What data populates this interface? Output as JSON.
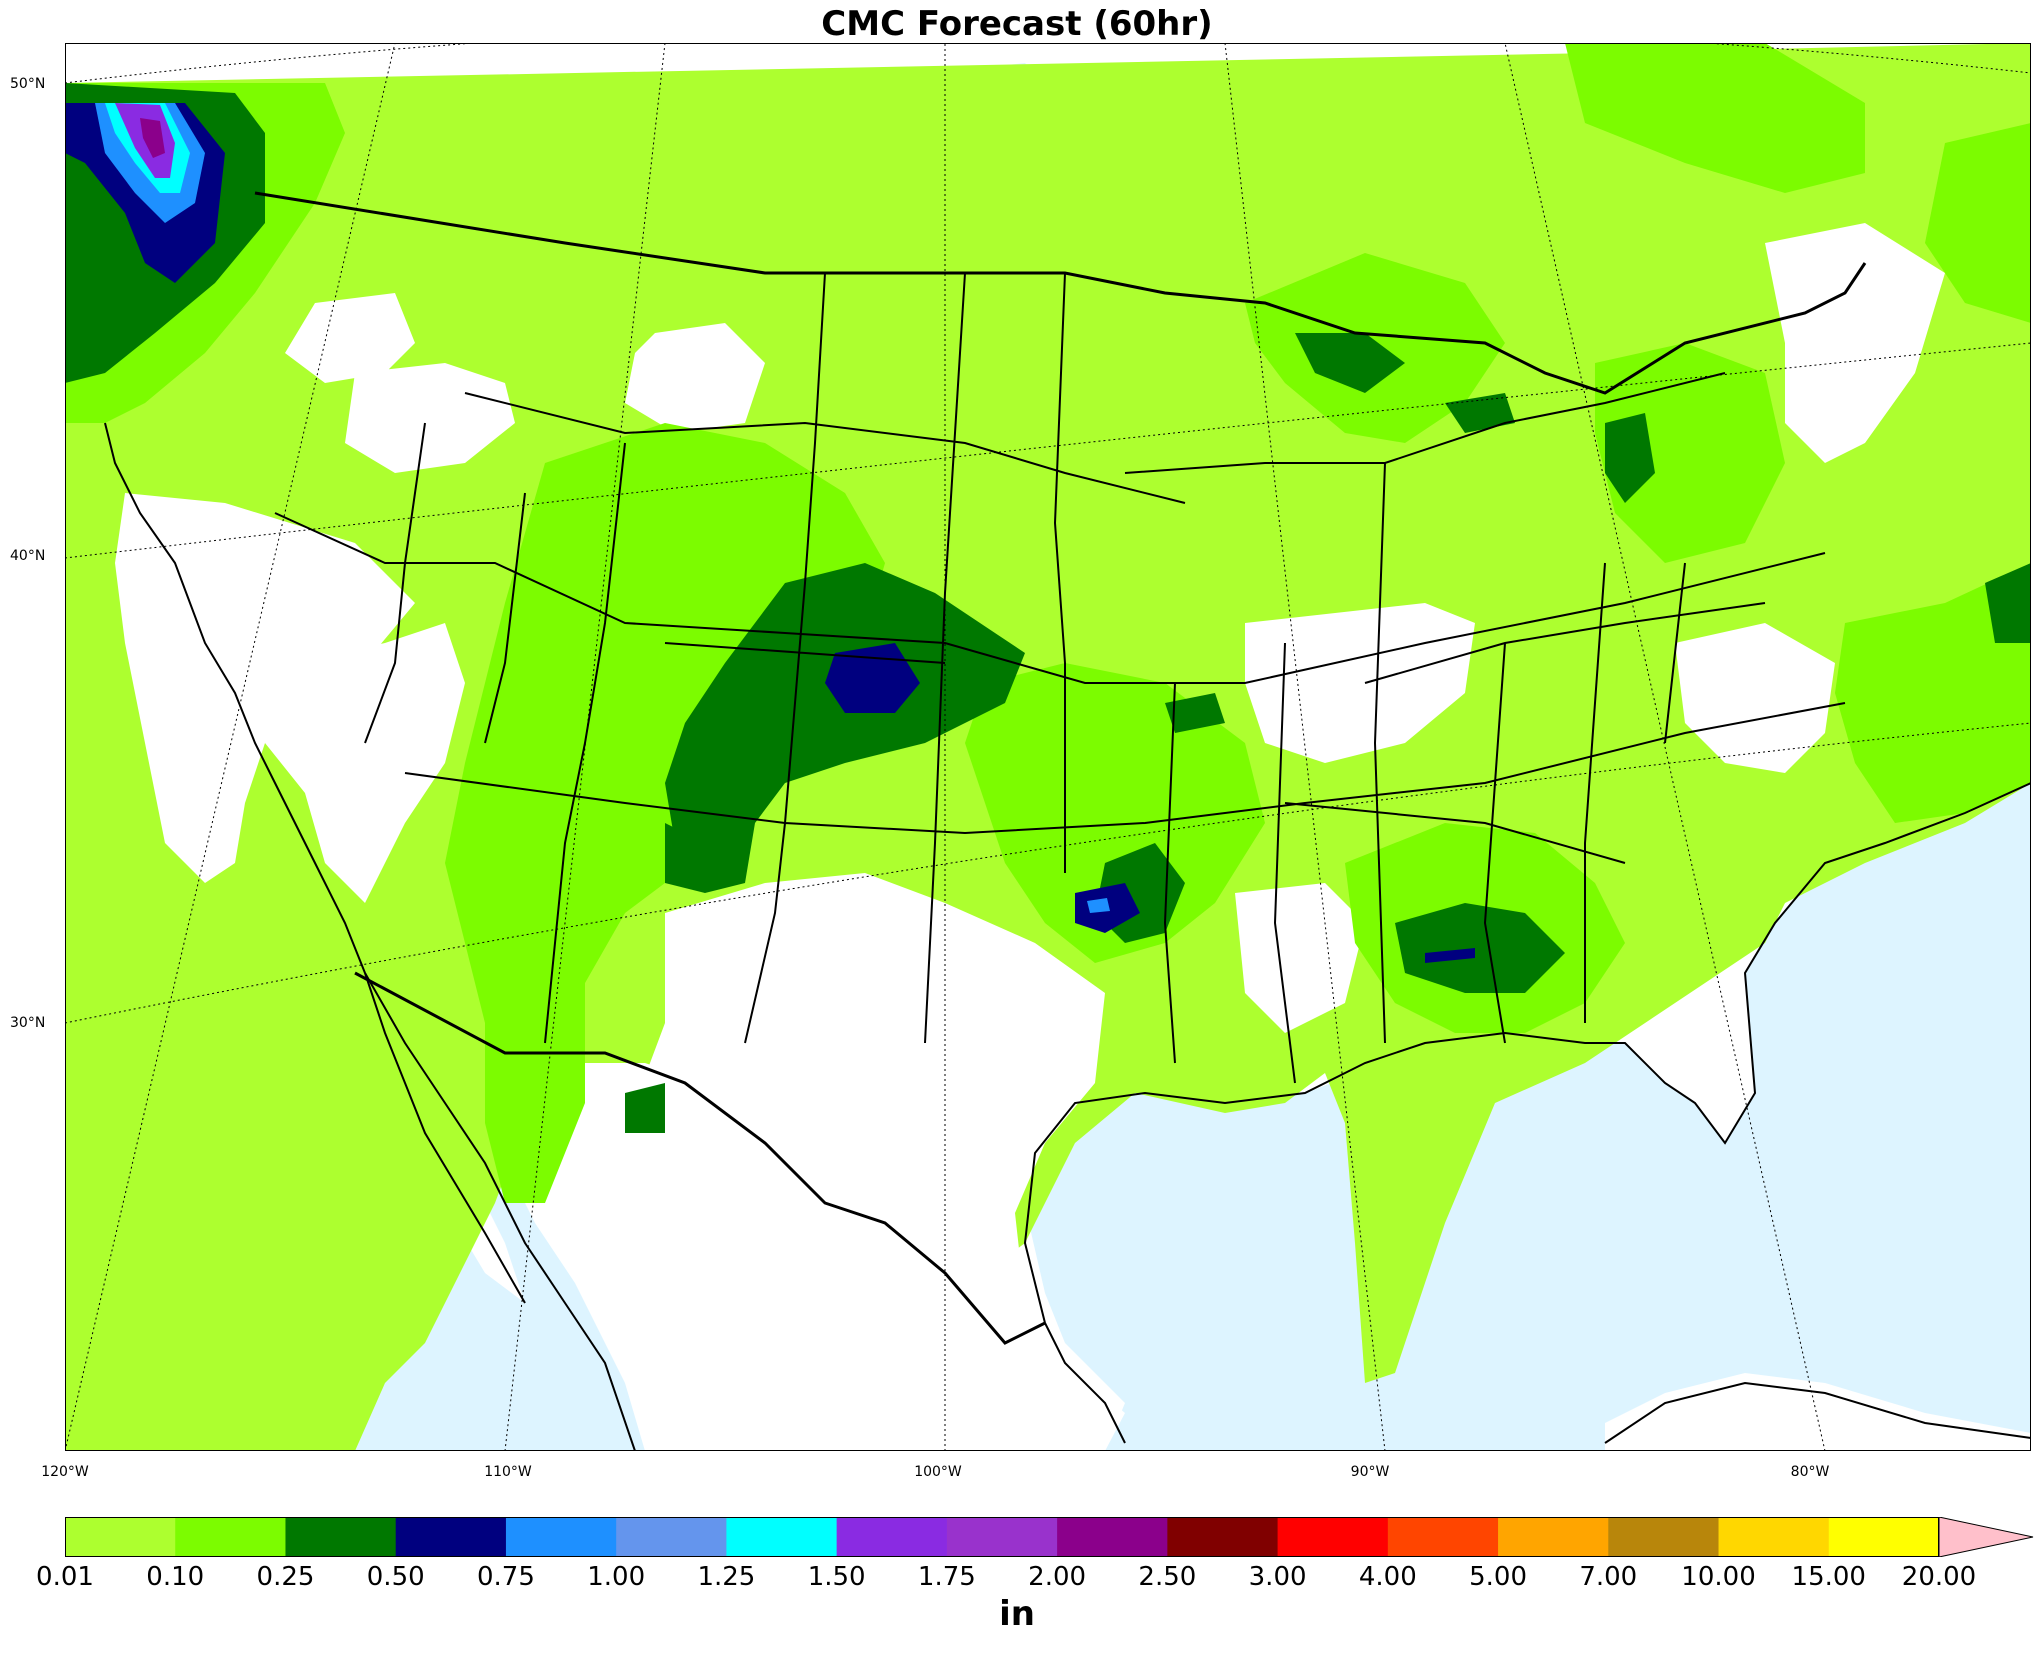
{
  "title": "CMC Forecast (60hr)",
  "lat_labels": [
    "50°N",
    "40°N",
    "30°N"
  ],
  "lon_labels": [
    "120°W",
    "110°W",
    "100°W",
    "90°W",
    "80°W"
  ],
  "colorbar": {
    "units": "in",
    "ticks": [
      "0.01",
      "0.10",
      "0.25",
      "0.50",
      "0.75",
      "1.00",
      "1.25",
      "1.50",
      "1.75",
      "2.00",
      "2.50",
      "3.00",
      "4.00",
      "5.00",
      "7.00",
      "10.00",
      "15.00",
      "20.00"
    ],
    "colors": [
      "#adff2f",
      "#7cfc00",
      "#007800",
      "#00007f",
      "#1e90ff",
      "#6495ed",
      "#00ffff",
      "#8a2be2",
      "#9932cc",
      "#8b008b",
      "#800000",
      "#ff0000",
      "#ff4500",
      "#ffa500",
      "#b8860b",
      "#ffd700",
      "#ffff00"
    ],
    "extend_color": "#ffc0cb"
  },
  "colors": {
    "ocean": "#ddf4ff",
    "land": "#ffffff",
    "border": "#000000"
  }
}
